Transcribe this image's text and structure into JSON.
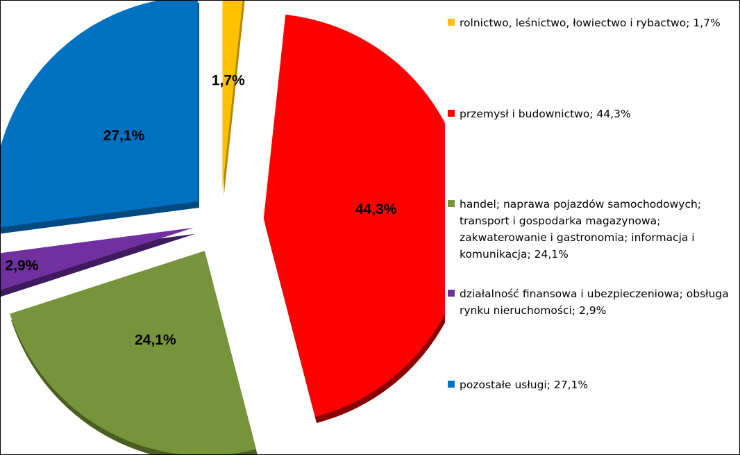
{
  "chart_data": {
    "type": "pie",
    "title": "",
    "legend_position": "right",
    "slices": [
      {
        "label": "rolnictwo, leśnictwo, łowiectwo i rybactwo; 1,7%",
        "value": 1.7,
        "data_label": "1,7%",
        "color": "#FFC000",
        "side_color": "#B38600"
      },
      {
        "label": "przemysł i budownictwo; 44,3%",
        "value": 44.3,
        "data_label": "44,3%",
        "color": "#FF0000",
        "side_color": "#8B0000"
      },
      {
        "label": "handel; naprawa pojazdów samochodowych; transport i gospodarka magazynowa; zakwaterowanie i gastronomia; informacja i komunikacja; 24,1%",
        "value": 24.1,
        "data_label": "24,1%",
        "color": "#77933C",
        "side_color": "#4A5E22"
      },
      {
        "label": "działalność finansowa i ubezpieczeniowa; obsługa rynku nieruchomości; 2,9%",
        "value": 2.9,
        "data_label": "2,9%",
        "color": "#7030A0",
        "side_color": "#3F1A5C"
      },
      {
        "label": "pozostałe usługi; 27,1%",
        "value": 27.1,
        "data_label": "27,1%",
        "color": "#0070C0",
        "side_color": "#004A80"
      }
    ]
  }
}
